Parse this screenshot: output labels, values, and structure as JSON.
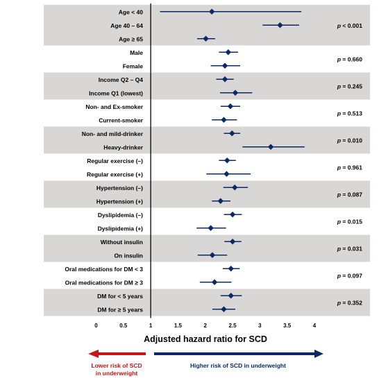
{
  "chart_data": {
    "type": "forest",
    "xlabel": "Adjusted hazard ratio for SCD",
    "xlim": [
      0,
      4.2
    ],
    "xticks": [
      0,
      0.5,
      1,
      1.5,
      2,
      2.5,
      3,
      3.5,
      4
    ],
    "xtick_labels": [
      "0",
      "0.5",
      "1",
      "1.5",
      "2",
      "2.5",
      "3",
      "3.5",
      "4"
    ],
    "reference_line": 1,
    "groups": [
      {
        "p_label": "p < 0.001",
        "shaded": true,
        "rows": [
          {
            "label": "Age < 40",
            "hr": 2.12,
            "lo": 1.17,
            "hi": 3.76
          },
          {
            "label": "Age 40 – 64",
            "hr": 3.37,
            "lo": 3.05,
            "hi": 3.72
          },
          {
            "label": "Age ≥ 65",
            "hr": 2.01,
            "lo": 1.85,
            "hi": 2.18
          }
        ]
      },
      {
        "p_label": "p = 0.660",
        "shaded": false,
        "rows": [
          {
            "label": "Male",
            "hr": 2.42,
            "lo": 2.25,
            "hi": 2.6
          },
          {
            "label": "Female",
            "hr": 2.36,
            "lo": 2.1,
            "hi": 2.64
          }
        ]
      },
      {
        "p_label": "p = 0.245",
        "shaded": true,
        "rows": [
          {
            "label": "Income Q2 – Q4",
            "hr": 2.36,
            "lo": 2.2,
            "hi": 2.52
          },
          {
            "label": "Income Q1 (lowest)",
            "hr": 2.55,
            "lo": 2.27,
            "hi": 2.86
          }
        ]
      },
      {
        "p_label": "p = 0.513",
        "shaded": false,
        "rows": [
          {
            "label": "Non- and Ex-smoker",
            "hr": 2.46,
            "lo": 2.28,
            "hi": 2.64
          },
          {
            "label": "Current-smoker",
            "hr": 2.34,
            "lo": 2.12,
            "hi": 2.58
          }
        ]
      },
      {
        "p_label": "p = 0.010",
        "shaded": true,
        "rows": [
          {
            "label": "Non- and mild-drinker",
            "hr": 2.49,
            "lo": 2.34,
            "hi": 2.64
          },
          {
            "label": "Heavy-drinker",
            "hr": 3.2,
            "lo": 2.68,
            "hi": 3.82
          }
        ]
      },
      {
        "p_label": "p = 0.961",
        "shaded": false,
        "rows": [
          {
            "label": "Regular exercise (–)",
            "hr": 2.4,
            "lo": 2.25,
            "hi": 2.56
          },
          {
            "label": "Regular exercise (+)",
            "hr": 2.39,
            "lo": 2.02,
            "hi": 2.83
          }
        ]
      },
      {
        "p_label": "p = 0.087",
        "shaded": true,
        "rows": [
          {
            "label": "Hypertension (–)",
            "hr": 2.54,
            "lo": 2.33,
            "hi": 2.78
          },
          {
            "label": "Hypertension (+)",
            "hr": 2.28,
            "lo": 2.12,
            "hi": 2.46
          }
        ]
      },
      {
        "p_label": "p = 0.015",
        "shaded": false,
        "rows": [
          {
            "label": "Dyslipidemia (–)",
            "hr": 2.5,
            "lo": 2.34,
            "hi": 2.67
          },
          {
            "label": "Dyslipidemia (+)",
            "hr": 2.1,
            "lo": 1.84,
            "hi": 2.38
          }
        ]
      },
      {
        "p_label": "p = 0.031",
        "shaded": true,
        "rows": [
          {
            "label": "Without insulin",
            "hr": 2.5,
            "lo": 2.35,
            "hi": 2.66
          },
          {
            "label": "On insulin",
            "hr": 2.13,
            "lo": 1.86,
            "hi": 2.4
          }
        ]
      },
      {
        "p_label": "p = 0.097",
        "shaded": false,
        "rows": [
          {
            "label": "Oral medications for DM < 3",
            "hr": 2.47,
            "lo": 2.32,
            "hi": 2.63
          },
          {
            "label": "Oral medications for DM ≥ 3",
            "hr": 2.17,
            "lo": 1.9,
            "hi": 2.48
          }
        ]
      },
      {
        "p_label": "p = 0.352",
        "shaded": true,
        "rows": [
          {
            "label": "DM for < 5 years",
            "hr": 2.47,
            "lo": 2.28,
            "hi": 2.67
          },
          {
            "label": "DM for ≥ 5 years",
            "hr": 2.34,
            "lo": 2.13,
            "hi": 2.55
          }
        ]
      }
    ],
    "arrows": {
      "left_label_line1": "Lower risk of SCD",
      "left_label_line2": "in underweight",
      "right_label": "Higher risk of SCD in underweight"
    },
    "colors": {
      "marker": "#0b2a63",
      "shade": "#d9d6d6",
      "left_arrow": "#c8141b",
      "right_arrow": "#0b2a63",
      "left_text": "#c8141b",
      "right_text": "#0b2a63"
    }
  }
}
